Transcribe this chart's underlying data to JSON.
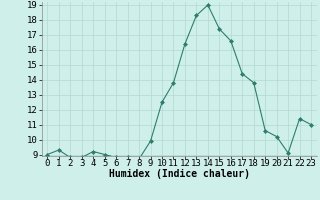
{
  "x": [
    0,
    1,
    2,
    3,
    4,
    5,
    6,
    7,
    8,
    9,
    10,
    11,
    12,
    13,
    14,
    15,
    16,
    17,
    18,
    19,
    20,
    21,
    22,
    23
  ],
  "y": [
    9.0,
    9.3,
    8.8,
    8.8,
    9.2,
    9.0,
    8.8,
    8.8,
    8.7,
    9.9,
    12.5,
    13.8,
    16.4,
    18.3,
    19.0,
    17.4,
    16.6,
    14.4,
    13.8,
    10.6,
    10.2,
    9.1,
    11.4,
    11.0
  ],
  "line_color": "#2e7d6e",
  "marker": "D",
  "marker_size": 2.0,
  "bg_color": "#cff0ea",
  "grid_color": "#b0d8d0",
  "xlabel": "Humidex (Indice chaleur)",
  "ylim_min": 8.9,
  "ylim_max": 19.2,
  "xlim_min": -0.5,
  "xlim_max": 23.5,
  "yticks": [
    9,
    10,
    11,
    12,
    13,
    14,
    15,
    16,
    17,
    18,
    19
  ],
  "xticks": [
    0,
    1,
    2,
    3,
    4,
    5,
    6,
    7,
    8,
    9,
    10,
    11,
    12,
    13,
    14,
    15,
    16,
    17,
    18,
    19,
    20,
    21,
    22,
    23
  ],
  "xlabel_fontsize": 7,
  "tick_fontsize": 6.5
}
